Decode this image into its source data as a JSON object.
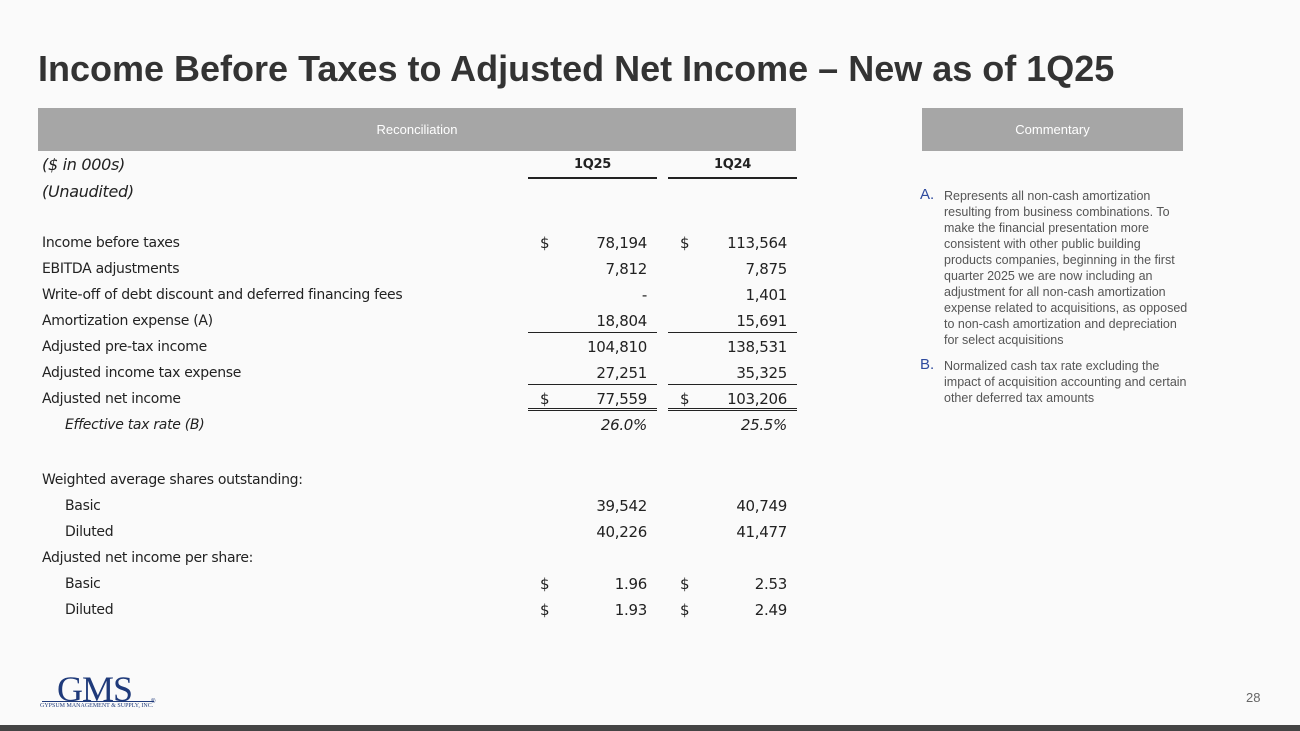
{
  "title": "Income Before Taxes to Adjusted Net Income – New as of 1Q25",
  "reconciliation": {
    "header": "Reconciliation",
    "units": "($ in 000s)",
    "audit": "(Unaudited)",
    "columns": [
      "1Q25",
      "1Q24"
    ],
    "rows": [
      {
        "label": "Income before taxes",
        "space_before": true,
        "values": [
          {
            "sign": "$",
            "text": "78,194"
          },
          {
            "sign": "$",
            "text": "113,564"
          }
        ]
      },
      {
        "label": "EBITDA adjustments",
        "values": [
          {
            "text": "7,812"
          },
          {
            "text": "7,875"
          }
        ]
      },
      {
        "label": "Write-off of debt discount and deferred financing fees",
        "values": [
          {
            "text": "-"
          },
          {
            "text": "1,401"
          }
        ]
      },
      {
        "label": "Amortization expense (A)",
        "rule": "single",
        "values": [
          {
            "text": "18,804"
          },
          {
            "text": "15,691"
          }
        ]
      },
      {
        "label": "Adjusted pre-tax income",
        "values": [
          {
            "text": "104,810"
          },
          {
            "text": "138,531"
          }
        ]
      },
      {
        "label": "Adjusted income tax expense",
        "rule": "single",
        "values": [
          {
            "text": "27,251"
          },
          {
            "text": "35,325"
          }
        ]
      },
      {
        "label": "Adjusted net income",
        "rule": "double",
        "values": [
          {
            "sign": "$",
            "text": "77,559"
          },
          {
            "sign": "$",
            "text": "103,206"
          }
        ]
      },
      {
        "label": "Effective tax rate (B)",
        "indent": true,
        "italic": true,
        "values": [
          {
            "text": "26.0%"
          },
          {
            "text": "25.5%"
          }
        ]
      },
      {
        "label": "Weighted average shares outstanding:",
        "space_before": true
      },
      {
        "label": "Basic",
        "indent": true,
        "values": [
          {
            "text": "39,542"
          },
          {
            "text": "40,749"
          }
        ]
      },
      {
        "label": "Diluted",
        "indent": true,
        "values": [
          {
            "text": "40,226"
          },
          {
            "text": "41,477"
          }
        ]
      },
      {
        "label": "Adjusted net income per share:"
      },
      {
        "label": "Basic",
        "indent": true,
        "values": [
          {
            "sign": "$",
            "text": "1.96"
          },
          {
            "sign": "$",
            "text": "2.53"
          }
        ]
      },
      {
        "label": "Diluted",
        "indent": true,
        "values": [
          {
            "sign": "$",
            "text": "1.93"
          },
          {
            "sign": "$",
            "text": "2.49"
          }
        ]
      }
    ]
  },
  "commentary": {
    "header": "Commentary",
    "notes": [
      {
        "marker": "A.",
        "text": "Represents all non-cash amortization resulting from business combinations. To make the financial presentation more consistent with other public building products companies, beginning in the first quarter 2025 we are now including an adjustment for all non-cash amortization expense related to acquisitions, as opposed to non-cash amortization and depreciation for select acquisitions"
      },
      {
        "marker": "B.",
        "text": "Normalized cash tax rate excluding the impact of acquisition accounting and certain other deferred tax amounts"
      }
    ]
  },
  "logo": {
    "name": "GMS",
    "tagline": "GYPSUM MANAGEMENT & SUPPLY, INC.",
    "registered": "®"
  },
  "page_number": "28"
}
